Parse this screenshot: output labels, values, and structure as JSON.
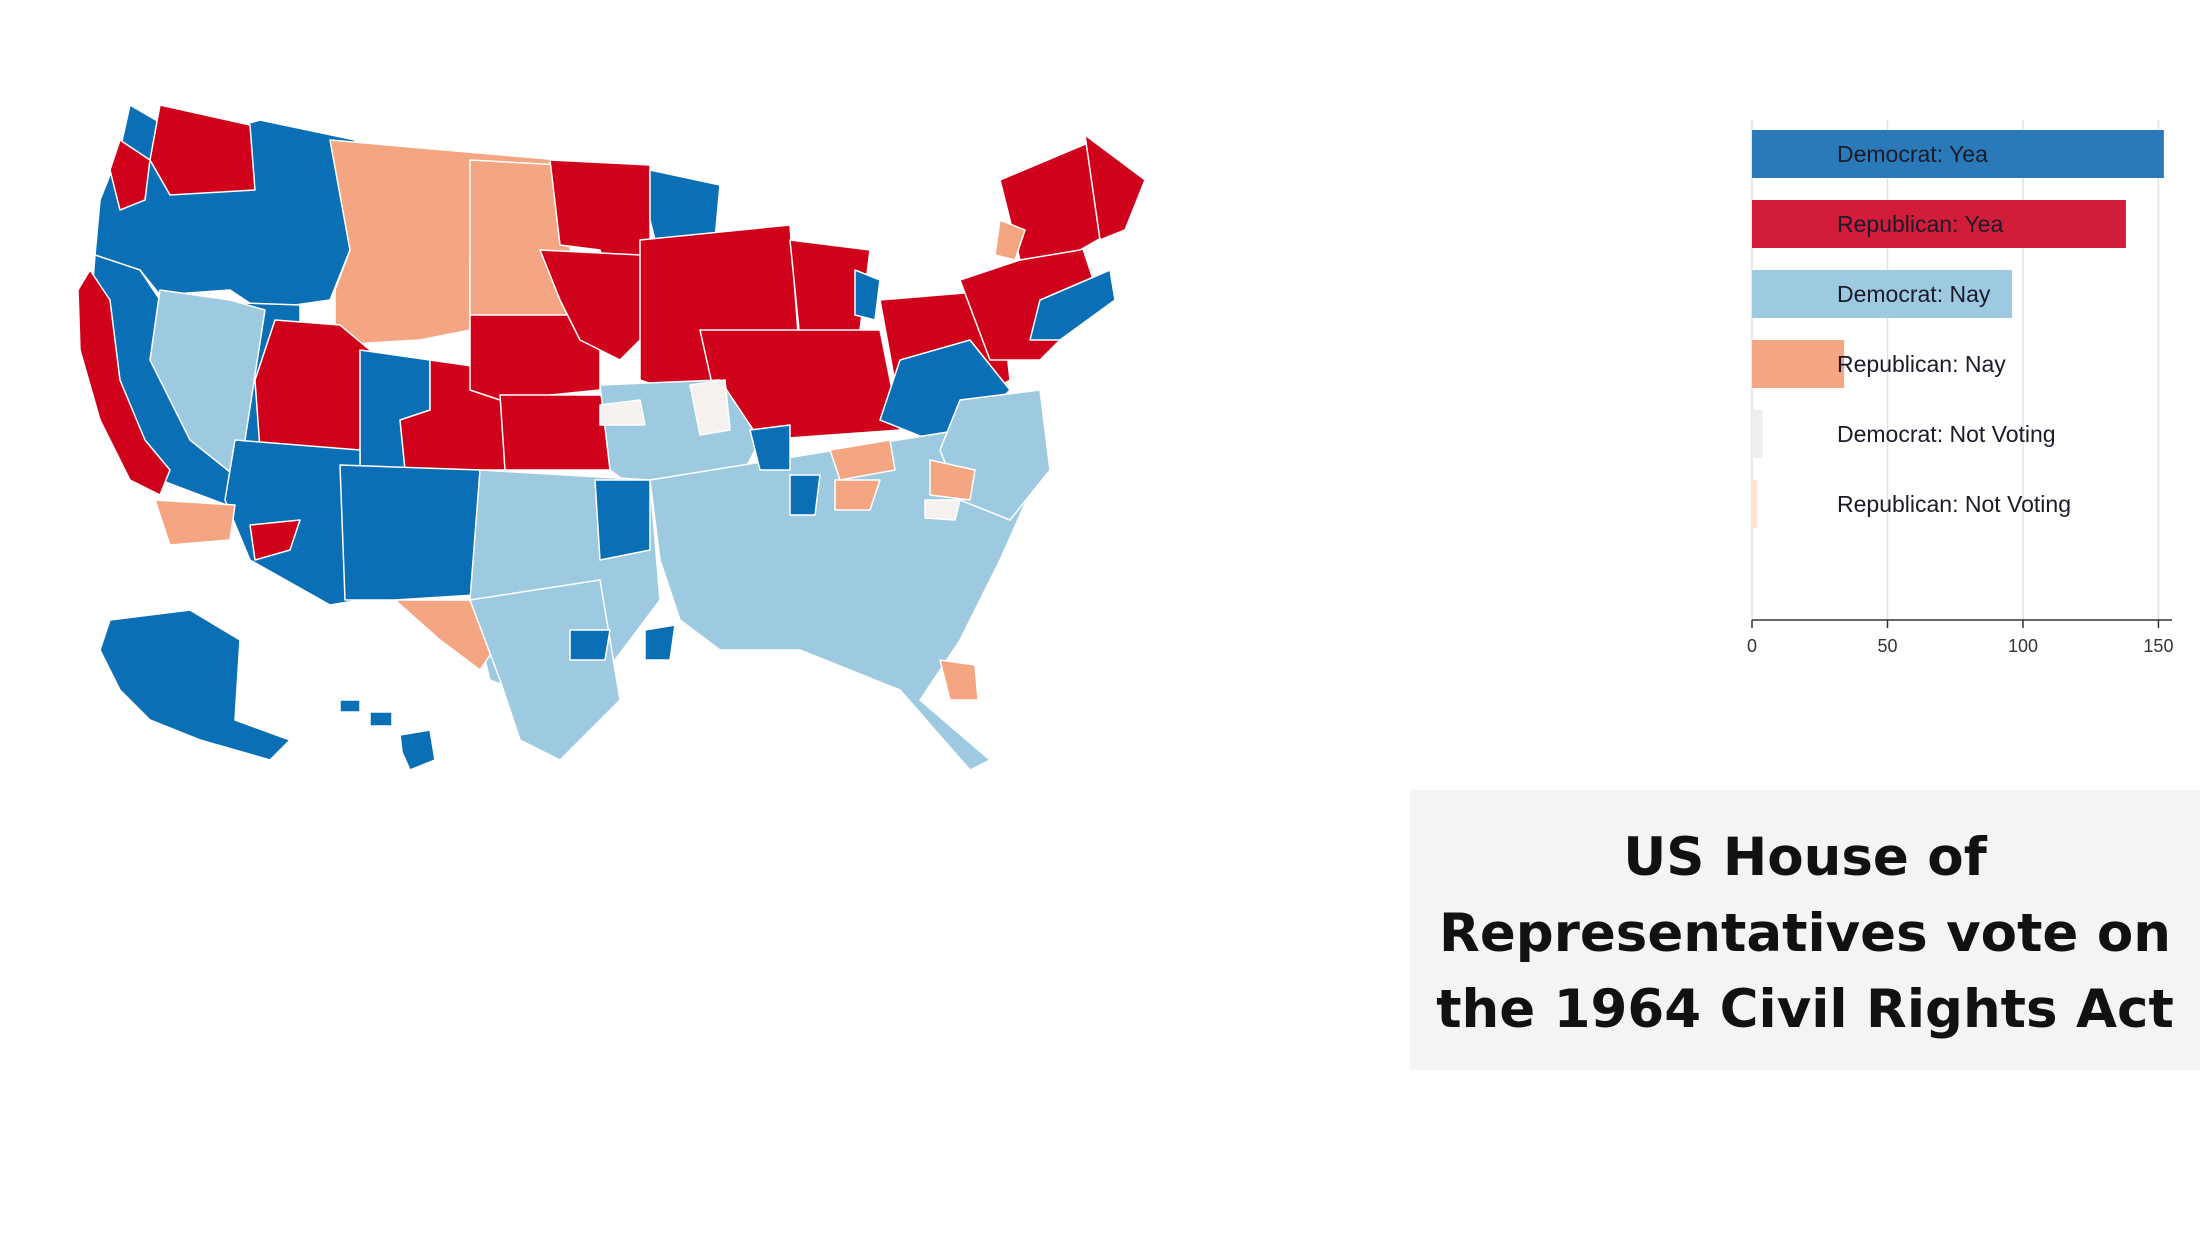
{
  "colors": {
    "democrat_yea": "#0b6fb5",
    "republican_yea": "#d0021b",
    "democrat_nay": "#9ecae1",
    "republican_nay": "#f4a582",
    "democrat_not_voting": "#f4f1ee",
    "republican_not_voting": "#fbe9e1",
    "boundary": "#ffffff"
  },
  "title": {
    "line1": "US House of",
    "line2": "Representatives vote on",
    "line3": "the 1964 Civil Rights Act"
  },
  "chart_data": {
    "type": "bar",
    "orientation": "horizontal",
    "categories": [
      "Democrat: Yea",
      "Republican: Yea",
      "Democrat: Nay",
      "Republican: Nay",
      "Democrat: Not Voting",
      "Republican: Not Voting"
    ],
    "values": [
      152,
      138,
      96,
      34,
      4,
      2
    ],
    "colors": [
      "#2a79b8",
      "#d11c3a",
      "#9ecae1",
      "#f4a582",
      "#eeeeee",
      "#fbe3d6"
    ],
    "xlim": [
      0,
      155
    ],
    "xticks": [
      "0",
      "50",
      "100",
      "150"
    ],
    "grid": true
  },
  "map": {
    "type": "choropleth",
    "region": "United States congressional districts",
    "legend": "bar chart at right",
    "inset_regions": [
      "Alaska",
      "Hawaii"
    ]
  }
}
